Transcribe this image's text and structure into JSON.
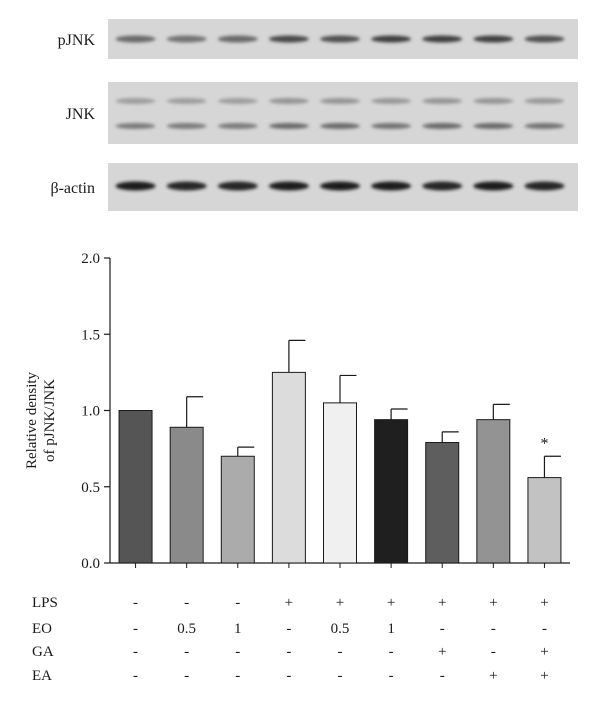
{
  "blot": {
    "rows": [
      {
        "label": "pJNK",
        "bands": 9,
        "double": false,
        "intensity": [
          0.55,
          0.5,
          0.55,
          0.75,
          0.7,
          0.8,
          0.8,
          0.8,
          0.7
        ]
      },
      {
        "label": "JNK",
        "bands": 9,
        "double": true,
        "intensity": [
          0.45,
          0.45,
          0.45,
          0.55,
          0.55,
          0.5,
          0.55,
          0.55,
          0.5
        ]
      },
      {
        "label": "β-actin",
        "bands": 9,
        "double": false,
        "intensity": [
          1,
          0.95,
          0.95,
          1,
          1,
          1,
          0.95,
          1,
          0.95
        ]
      }
    ]
  },
  "chart_data": {
    "type": "bar",
    "ylabel": "Relative density of pJNK/JNK",
    "ylabel_lines": [
      "Relative density",
      "of pJNK/JNK"
    ],
    "xlabel": "",
    "ylim": [
      0,
      2.0
    ],
    "yticks": [
      0.0,
      0.5,
      1.0,
      1.5,
      2.0
    ],
    "ytick_labels": [
      "0.0",
      "0.5",
      "1.0",
      "1.5",
      "2.0"
    ],
    "values": [
      1.0,
      0.89,
      0.7,
      1.25,
      1.05,
      0.94,
      0.79,
      0.94,
      0.56
    ],
    "errors": [
      0.0,
      0.2,
      0.06,
      0.21,
      0.18,
      0.07,
      0.07,
      0.1,
      0.14
    ],
    "bar_colors": [
      "#555555",
      "#8a8a8a",
      "#ababab",
      "#dcdcdc",
      "#f0f0f0",
      "#1f1f1f",
      "#5e5e5e",
      "#939393",
      "#c2c2c2"
    ],
    "significance": [
      "",
      "",
      "",
      "",
      "",
      "",
      "",
      "",
      "*"
    ],
    "conditions": [
      {
        "name": "LPS",
        "values": [
          "-",
          "-",
          "-",
          "+",
          "+",
          "+",
          "+",
          "+",
          "+"
        ]
      },
      {
        "name": "EO",
        "values": [
          "-",
          "0.5",
          "1",
          "-",
          "0.5",
          "1",
          "-",
          "-",
          "-"
        ]
      },
      {
        "name": "GA",
        "values": [
          "-",
          "-",
          "-",
          "-",
          "-",
          "-",
          "+",
          "-",
          "+"
        ]
      },
      {
        "name": "EA",
        "values": [
          "-",
          "-",
          "-",
          "-",
          "-",
          "-",
          "-",
          "+",
          "+"
        ]
      }
    ]
  }
}
